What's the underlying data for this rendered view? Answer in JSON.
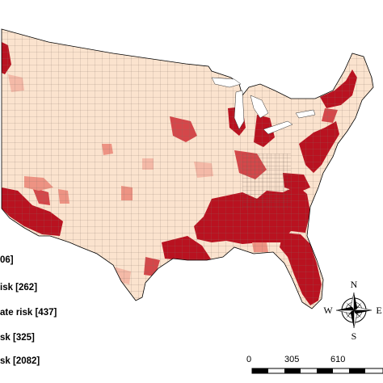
{
  "legend": {
    "items": [
      {
        "label": "06]",
        "color": "#fbe3cf"
      },
      {
        "label": "isk [262]",
        "color": "#f4b6a4"
      },
      {
        "label": "ate risk [437]",
        "color": "#ec8c7d"
      },
      {
        "label": "sk [325]",
        "color": "#d13a3f"
      },
      {
        "label": "sk [2082]",
        "color": "#b30012"
      }
    ]
  },
  "scale_bar": {
    "ticks": [
      "0",
      "305",
      "610"
    ]
  },
  "compass": {
    "n": "N",
    "s": "S",
    "e": "E",
    "w": "W"
  },
  "colors": {
    "land": "#fbe3cf",
    "county_lines": "#6b5a50",
    "very_high": "#b30012",
    "high": "#d13a3f",
    "moderate": "#ec8c7d",
    "low": "#f4b6a4",
    "border": "#000000"
  }
}
